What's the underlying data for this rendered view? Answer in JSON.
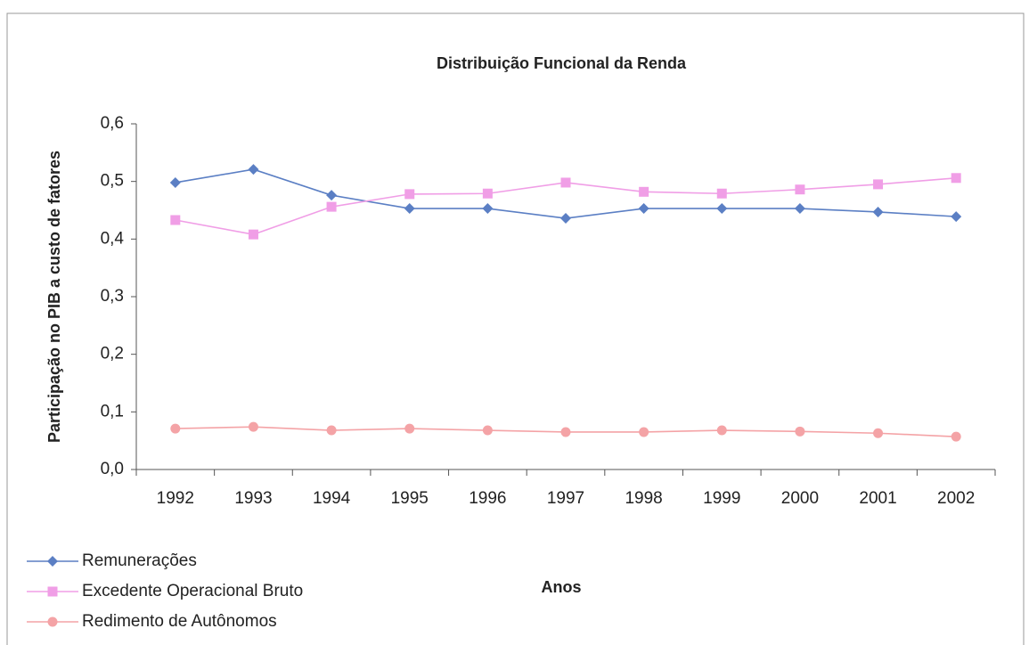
{
  "chart_data": {
    "type": "line",
    "title": "Distribuição Funcional da Renda",
    "x_label": "Anos",
    "y_label": "Participação no PIB a custo de fatores",
    "categories": [
      "1992",
      "1993",
      "1994",
      "1995",
      "1996",
      "1997",
      "1998",
      "1999",
      "2000",
      "2001",
      "2002"
    ],
    "series": [
      {
        "name": "Remunerações",
        "color": "#5b7fc4",
        "marker": "diamond",
        "values": [
          0.498,
          0.521,
          0.476,
          0.453,
          0.453,
          0.436,
          0.453,
          0.453,
          0.453,
          0.447,
          0.439
        ]
      },
      {
        "name": "Excedente Operacional Bruto",
        "color": "#f09ee6",
        "marker": "square",
        "values": [
          0.433,
          0.408,
          0.456,
          0.478,
          0.479,
          0.498,
          0.482,
          0.479,
          0.486,
          0.495,
          0.506
        ]
      },
      {
        "name": "Redimento de Autônomos",
        "color": "#f4a3a6",
        "marker": "circle",
        "values": [
          0.071,
          0.074,
          0.068,
          0.071,
          0.068,
          0.065,
          0.065,
          0.068,
          0.066,
          0.063,
          0.057
        ]
      }
    ],
    "ylim": [
      0,
      0.6
    ],
    "yticks": [
      {
        "value": 0,
        "label": "0,0"
      },
      {
        "value": 0.1,
        "label": "0,1"
      },
      {
        "value": 0.2,
        "label": "0,2"
      },
      {
        "value": 0.3,
        "label": "0,3"
      },
      {
        "value": 0.4,
        "label": "0,4"
      },
      {
        "value": 0.5,
        "label": "0,5"
      },
      {
        "value": 0.6,
        "label": "0,6"
      }
    ],
    "grid": false,
    "legend": "bottom-left"
  }
}
